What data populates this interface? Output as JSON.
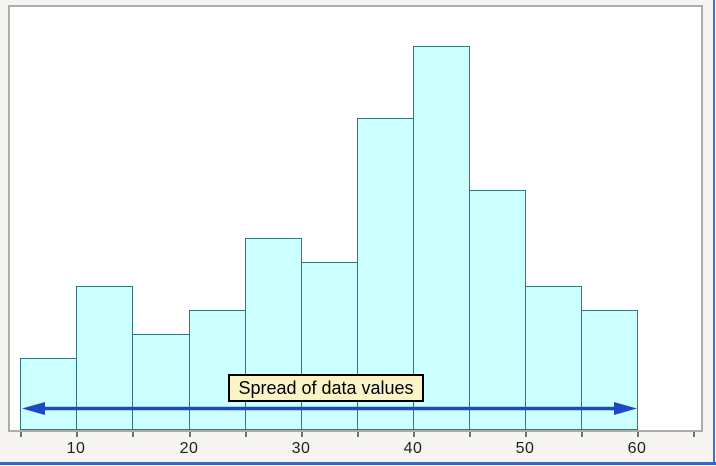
{
  "chart_data": {
    "type": "bar",
    "subtype": "histogram",
    "title": "",
    "xlabel": "",
    "ylabel": "",
    "bin_width": 5,
    "bin_edges": [
      5,
      10,
      15,
      20,
      25,
      30,
      35,
      40,
      45,
      50,
      55,
      60
    ],
    "values": [
      3,
      6,
      4,
      5,
      8,
      7,
      13,
      16,
      10,
      6,
      5
    ],
    "x_tick_labels": [
      "10",
      "20",
      "30",
      "40",
      "50",
      "60"
    ],
    "x_tick_values": [
      10,
      20,
      30,
      40,
      50,
      60
    ],
    "minor_tick_values": [
      5,
      10,
      15,
      20,
      25,
      30,
      35,
      40,
      45,
      50,
      55,
      60,
      65
    ],
    "x_range_shown": [
      5,
      65
    ],
    "ylim": [
      0,
      17.6
    ],
    "gridlines": "off",
    "legend": "none",
    "y_axis_labels_visible": false
  },
  "annotation": {
    "label": "Spread of data values",
    "arrow_span_x": [
      5,
      60
    ]
  },
  "colors": {
    "page_bg": "#f5f4f0",
    "plot_bg": "#ffffff",
    "plot_border": "#acacac",
    "bar_fill": "#ccffff",
    "bar_border": "#35747f",
    "tick_mark": "#6e6e6e",
    "tick_label": "#1f1f1f",
    "arrow": "#1d49c5",
    "annotation_bg": "#faf4c6",
    "annotation_border": "#000000",
    "frame_right_blue": "#4571b3",
    "frame_bottom_blue": "#3a67c0"
  }
}
